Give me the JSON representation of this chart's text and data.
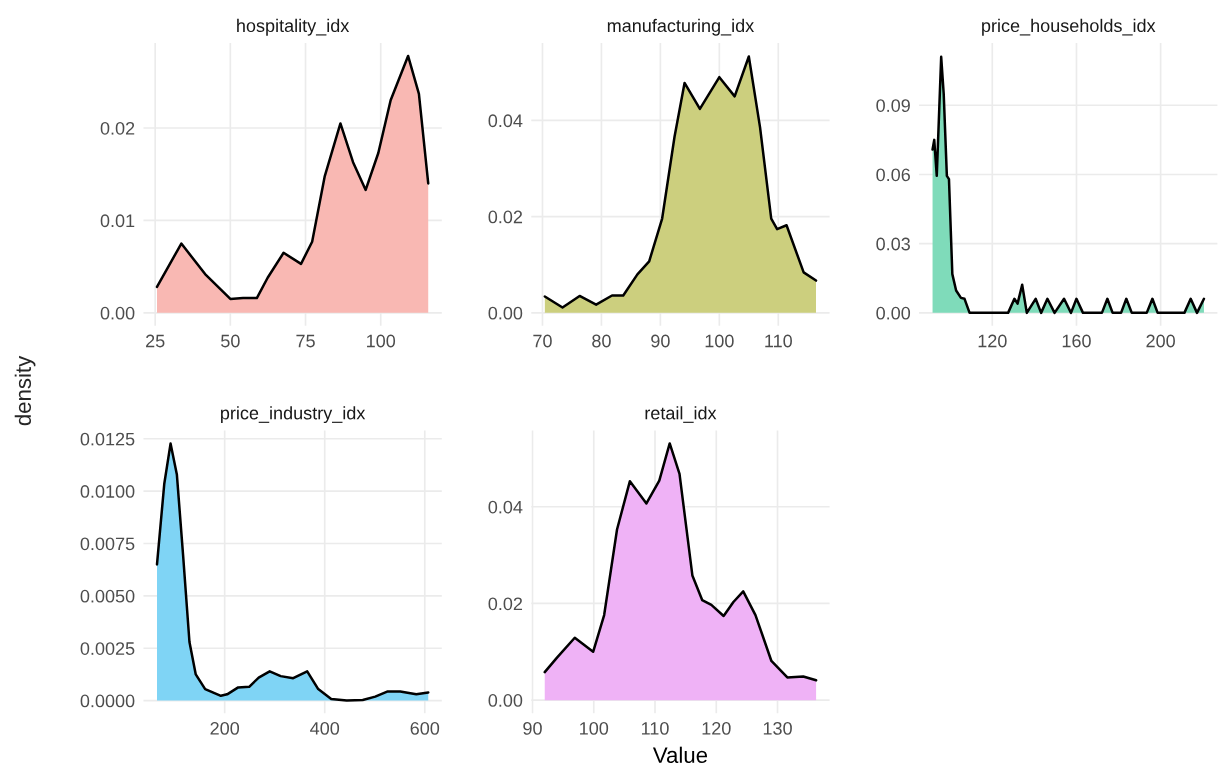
{
  "chart_data": [
    {
      "type": "area",
      "title": "hospitality_idx",
      "grid": true,
      "xlim": [
        21.1,
        120.3
      ],
      "xticks": [
        25,
        50,
        75,
        100
      ],
      "ylim": [
        -0.0014,
        0.0292
      ],
      "yticks": [
        {
          "value": 0,
          "label": "0.00"
        },
        {
          "value": 0.01,
          "label": "0.01"
        },
        {
          "value": 0.02,
          "label": "0.02"
        }
      ],
      "series": [
        {
          "color": "#f9b8b3",
          "x": [
            25.6,
            33.7,
            41.6,
            50,
            54.2,
            58.8,
            62.4,
            67.7,
            73.5,
            77.2,
            81.4,
            86.6,
            90.8,
            95,
            99.2,
            103.3,
            109.1,
            112.7,
            115.8
          ],
          "values": [
            0.0028,
            0.0075,
            0.0042,
            0.0015,
            0.0016,
            0.0016,
            0.0038,
            0.0065,
            0.0053,
            0.0077,
            0.0148,
            0.0205,
            0.0163,
            0.0133,
            0.0173,
            0.023,
            0.0278,
            0.0237,
            0.014
          ]
        }
      ]
    },
    {
      "type": "area",
      "title": "manufacturing_idx",
      "grid": true,
      "xlim": [
        68.1,
        118.7
      ],
      "xticks": [
        70,
        80,
        90,
        100,
        110
      ],
      "ylim": [
        -0.0027,
        0.0561
      ],
      "yticks": [
        {
          "value": 0,
          "label": "0.00"
        },
        {
          "value": 0.02,
          "label": "0.02"
        },
        {
          "value": 0.04,
          "label": "0.04"
        }
      ],
      "series": [
        {
          "color": "#cccf7e",
          "x": [
            70.4,
            73.4,
            76.3,
            79.1,
            81.8,
            83.7,
            86.1,
            88.1,
            90.3,
            92.4,
            94.1,
            96.7,
            100,
            102.6,
            105,
            106.9,
            108.8,
            109.8,
            111.4,
            114.3,
            116.4
          ],
          "values": [
            0.0034,
            0.0011,
            0.0035,
            0.0017,
            0.0036,
            0.0036,
            0.008,
            0.0107,
            0.0196,
            0.0366,
            0.0478,
            0.0424,
            0.049,
            0.045,
            0.0533,
            0.0386,
            0.0196,
            0.0174,
            0.0182,
            0.0084,
            0.0067
          ]
        }
      ]
    },
    {
      "type": "area",
      "title": "price_households_idx",
      "grid": true,
      "xlim": [
        85.2,
        227
      ],
      "xticks": [
        120,
        160,
        200
      ],
      "ylim": [
        -0.0056,
        0.117
      ],
      "yticks": [
        {
          "value": 0,
          "label": "0.00"
        },
        {
          "value": 0.03,
          "label": "0.03"
        },
        {
          "value": 0.06,
          "label": "0.06"
        },
        {
          "value": 0.09,
          "label": "0.09"
        }
      ],
      "series": [
        {
          "color": "#7fdbba",
          "x": [
            91.6,
            92.4,
            93.6,
            95.7,
            96.9,
            98.4,
            99.4,
            101,
            102.8,
            105.1,
            106.8,
            109.2,
            127.5,
            130.5,
            132,
            134.2,
            136.4,
            140.6,
            143.2,
            146.2,
            149.6,
            154.1,
            157.4,
            160,
            163.1,
            172.1,
            174.7,
            177.2,
            181.2,
            183.7,
            186.3,
            193.4,
            196.1,
            198.6,
            211.3,
            214.3,
            217.3,
            220.6
          ],
          "values": [
            0.0708,
            0.075,
            0.0594,
            0.111,
            0.095,
            0.0594,
            0.058,
            0.0168,
            0.0097,
            0.0065,
            0.0061,
            0,
            0,
            0.0061,
            0.004,
            0.0122,
            0,
            0.0061,
            0,
            0.0061,
            0,
            0.0061,
            0,
            0.0061,
            0,
            0,
            0.0061,
            0,
            0,
            0.0061,
            0,
            0,
            0.0061,
            0,
            0,
            0.0061,
            0,
            0.0061
          ]
        }
      ]
    },
    {
      "type": "area",
      "title": "price_industry_idx",
      "ylabel": "density",
      "grid": true,
      "xlim": [
        37.6,
        634
      ],
      "xticks": [
        200,
        400,
        600
      ],
      "ylim": [
        -0.0006,
        0.0129
      ],
      "yticks": [
        {
          "value": 0,
          "label": "0.0000"
        },
        {
          "value": 0.0025,
          "label": "0.0025"
        },
        {
          "value": 0.005,
          "label": "0.0050"
        },
        {
          "value": 0.0075,
          "label": "0.0075"
        },
        {
          "value": 0.01,
          "label": "0.0100"
        },
        {
          "value": 0.0125,
          "label": "0.0125"
        }
      ],
      "series": [
        {
          "color": "#7fd4f5",
          "x": [
            64.7,
            79.2,
            91.8,
            104.4,
            117,
            129.6,
            142.2,
            161,
            192.4,
            205,
            227,
            249,
            268,
            290,
            312,
            337,
            365,
            387,
            413,
            444,
            476,
            501,
            526,
            551,
            583,
            607
          ],
          "values": [
            0.0065,
            0.01034,
            0.01227,
            0.0108,
            0.0069,
            0.0028,
            0.00125,
            0.00055,
            0.00023,
            0.0003,
            0.00063,
            0.00066,
            0.0011,
            0.0014,
            0.00117,
            0.00107,
            0.0014,
            0.00055,
            8e-05,
            0,
            3e-05,
            0.00019,
            0.00044,
            0.00044,
            0.0003,
            0.00039
          ]
        }
      ]
    },
    {
      "type": "area",
      "title": "retail_idx",
      "xlabel": "Value",
      "grid": true,
      "xlim": [
        89.8,
        138.5
      ],
      "xticks": [
        90,
        100,
        110,
        120,
        130
      ],
      "ylim": [
        -0.0027,
        0.0558
      ],
      "yticks": [
        {
          "value": 0,
          "label": "0.00"
        },
        {
          "value": 0.02,
          "label": "0.02"
        },
        {
          "value": 0.04,
          "label": "0.04"
        }
      ],
      "series": [
        {
          "color": "#efb2f6",
          "x": [
            92,
            94,
            96.9,
            99.9,
            101.7,
            103.8,
            105.9,
            108.6,
            110.7,
            112.4,
            114,
            116.1,
            117.7,
            119.2,
            121.2,
            122.8,
            124.4,
            126.4,
            129,
            131.6,
            134.2,
            136.3
          ],
          "values": [
            0.0058,
            0.0088,
            0.0129,
            0.01,
            0.0176,
            0.0353,
            0.0453,
            0.0407,
            0.0454,
            0.0531,
            0.0468,
            0.0258,
            0.0207,
            0.0197,
            0.0174,
            0.0203,
            0.0225,
            0.0176,
            0.0081,
            0.0047,
            0.0049,
            0.0041
          ]
        }
      ]
    }
  ]
}
